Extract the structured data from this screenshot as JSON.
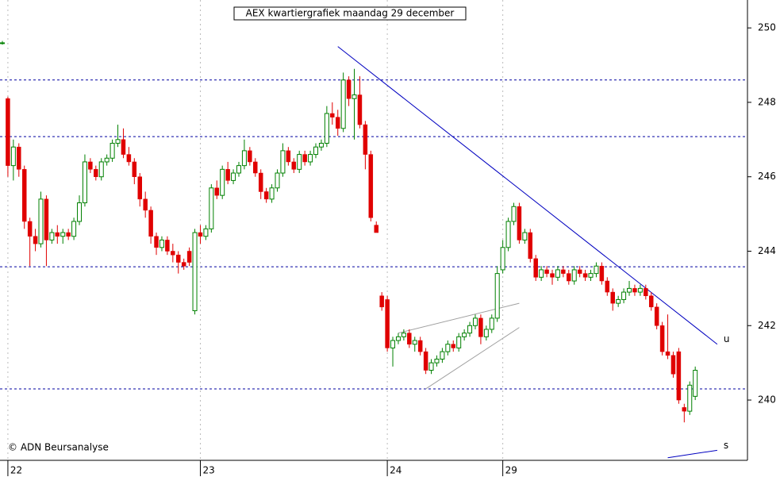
{
  "chart_data": {
    "type": "candlestick",
    "title": "AEX kwartiergrafiek maandag 29 december",
    "footer": "© ADN Beursanalyse",
    "ylim": [
      238.38,
      250.75
    ],
    "yticks": [
      240,
      242,
      244,
      246,
      248,
      250
    ],
    "up_color": "#008000",
    "down_color": "#e00000",
    "level_color": "#0000a0",
    "levels": [
      248.6,
      247.08,
      243.58,
      240.3
    ],
    "trendlines": [
      {
        "label": "u",
        "x": [
          61,
          130
        ],
        "y": [
          249.5,
          241.5
        ],
        "color": "#0000c0"
      },
      {
        "label": "s",
        "x": [
          121,
          130
        ],
        "y": [
          238.45,
          238.65
        ],
        "color": "#0000c0"
      },
      {
        "x": [
          72,
          94
        ],
        "y": [
          241.8,
          242.6
        ],
        "color": "#a0a0a0"
      },
      {
        "x": [
          77,
          94
        ],
        "y": [
          240.3,
          241.95
        ],
        "color": "#a0a0a0"
      }
    ],
    "categories": [
      null,
      "22",
      null,
      null,
      null,
      null,
      null,
      null,
      null,
      null,
      null,
      null,
      null,
      null,
      null,
      null,
      null,
      null,
      null,
      null,
      null,
      null,
      null,
      null,
      null,
      null,
      null,
      null,
      null,
      null,
      null,
      null,
      null,
      null,
      null,
      null,
      "23",
      null,
      null,
      null,
      null,
      null,
      null,
      null,
      null,
      null,
      null,
      null,
      null,
      null,
      null,
      null,
      null,
      null,
      null,
      null,
      null,
      null,
      null,
      null,
      null,
      null,
      null,
      null,
      null,
      null,
      null,
      null,
      null,
      null,
      "24",
      null,
      null,
      null,
      null,
      null,
      null,
      null,
      null,
      null,
      null,
      null,
      null,
      null,
      null,
      null,
      null,
      null,
      null,
      null,
      null,
      "29",
      null,
      null,
      null,
      null,
      null,
      null,
      null,
      null,
      null,
      null,
      null,
      null,
      null,
      null,
      null,
      null,
      null,
      null,
      null,
      null,
      null,
      null,
      null,
      null,
      null,
      null,
      null,
      null,
      null,
      null,
      null,
      null,
      null,
      null,
      null
    ],
    "open": [
      249.6,
      248.1,
      246.3,
      246.8,
      246.2,
      244.8,
      244.4,
      244.2,
      245.4,
      244.3,
      244.5,
      244.4,
      244.5,
      244.4,
      244.8,
      245.3,
      246.4,
      246.2,
      246.0,
      246.4,
      246.5,
      246.9,
      247.0,
      246.6,
      246.4,
      246.0,
      245.4,
      245.1,
      244.4,
      244.1,
      244.3,
      244.0,
      243.9,
      243.7,
      244.0,
      242.4,
      244.5,
      244.4,
      244.6,
      245.7,
      245.5,
      246.2,
      245.9,
      246.1,
      246.3,
      246.7,
      246.4,
      246.1,
      245.6,
      245.4,
      245.7,
      246.1,
      246.7,
      246.4,
      246.2,
      246.6,
      246.4,
      246.6,
      246.8,
      246.9,
      247.7,
      247.6,
      247.3,
      248.6,
      248.1,
      248.2,
      247.4,
      246.6,
      244.7,
      242.8,
      242.7,
      241.4,
      241.6,
      241.7,
      241.8,
      241.5,
      241.6,
      241.3,
      240.8,
      241.0,
      241.1,
      241.3,
      241.5,
      241.4,
      241.7,
      241.8,
      242.0,
      242.2,
      241.7,
      241.9,
      242.2,
      243.5,
      244.1,
      244.8,
      245.2,
      244.3,
      244.5,
      243.8,
      243.3,
      243.5,
      243.4,
      243.3,
      243.5,
      243.4,
      243.2,
      243.5,
      243.4,
      243.3,
      243.4,
      243.6,
      243.2,
      242.9,
      242.6,
      242.7,
      242.9,
      243.0,
      242.9,
      243.0,
      242.8,
      242.5,
      242.0,
      241.3,
      241.2,
      241.3,
      239.8,
      239.7,
      240.1
    ],
    "high": [
      249.65,
      248.15,
      247.0,
      246.9,
      246.3,
      244.9,
      244.6,
      245.6,
      245.5,
      244.6,
      244.7,
      244.6,
      244.6,
      244.9,
      245.5,
      246.6,
      246.5,
      246.3,
      246.5,
      246.6,
      247.0,
      247.4,
      247.3,
      246.8,
      246.5,
      246.1,
      245.6,
      245.2,
      244.5,
      244.4,
      244.4,
      244.2,
      244.0,
      243.8,
      244.1,
      244.6,
      244.7,
      244.7,
      245.8,
      245.9,
      246.3,
      246.4,
      246.2,
      246.4,
      247.0,
      246.8,
      246.5,
      246.2,
      245.7,
      245.8,
      246.2,
      246.9,
      246.8,
      246.5,
      246.7,
      246.7,
      246.7,
      246.9,
      247.0,
      247.9,
      248.0,
      247.8,
      248.8,
      248.7,
      248.9,
      248.7,
      247.5,
      246.7,
      244.8,
      242.9,
      242.8,
      241.7,
      241.8,
      241.9,
      241.9,
      241.7,
      241.7,
      241.4,
      241.1,
      241.2,
      241.4,
      241.6,
      241.6,
      241.8,
      241.9,
      242.1,
      242.3,
      242.3,
      242.0,
      242.3,
      243.6,
      244.3,
      244.9,
      245.3,
      245.3,
      244.6,
      244.6,
      243.9,
      243.6,
      243.6,
      243.5,
      243.6,
      243.6,
      243.5,
      243.6,
      243.6,
      243.5,
      243.5,
      243.7,
      243.7,
      243.3,
      243.0,
      242.8,
      243.0,
      243.2,
      243.1,
      243.1,
      243.1,
      242.9,
      242.6,
      242.1,
      242.3,
      241.3,
      241.4,
      239.9,
      240.5,
      240.9
    ],
    "low": [
      249.55,
      246.0,
      245.9,
      246.0,
      244.6,
      243.6,
      244.0,
      244.1,
      243.6,
      244.2,
      244.2,
      244.2,
      244.3,
      244.3,
      244.7,
      245.2,
      246.1,
      245.9,
      245.9,
      246.3,
      246.4,
      246.8,
      246.5,
      246.3,
      245.8,
      245.2,
      244.9,
      244.2,
      243.9,
      244.0,
      243.9,
      243.7,
      243.4,
      243.5,
      243.6,
      242.3,
      244.2,
      244.3,
      244.5,
      245.4,
      245.4,
      245.8,
      245.8,
      246.0,
      246.2,
      246.3,
      246.0,
      245.4,
      245.3,
      245.3,
      245.6,
      246.0,
      246.3,
      246.1,
      246.1,
      246.3,
      246.3,
      246.5,
      246.7,
      246.8,
      247.4,
      247.1,
      247.2,
      247.9,
      247.0,
      247.3,
      246.2,
      244.8,
      244.5,
      242.4,
      241.3,
      240.9,
      241.5,
      241.6,
      241.4,
      241.3,
      241.2,
      240.7,
      240.7,
      240.9,
      241.0,
      241.2,
      241.3,
      241.3,
      241.6,
      241.7,
      241.9,
      241.5,
      241.6,
      241.8,
      242.1,
      243.4,
      244.0,
      244.7,
      244.2,
      244.2,
      243.7,
      243.2,
      243.2,
      243.3,
      243.1,
      243.2,
      243.3,
      243.1,
      243.1,
      243.3,
      243.2,
      243.2,
      243.3,
      243.1,
      242.8,
      242.4,
      242.5,
      242.6,
      242.8,
      242.8,
      242.8,
      242.7,
      242.4,
      241.9,
      241.2,
      241.1,
      240.6,
      239.9,
      239.4,
      239.6,
      240.0
    ],
    "close": [
      249.6,
      246.3,
      246.8,
      246.2,
      244.8,
      244.4,
      244.2,
      245.4,
      244.3,
      244.5,
      244.4,
      244.5,
      244.4,
      244.8,
      245.3,
      246.4,
      246.2,
      246.0,
      246.4,
      246.5,
      246.9,
      247.0,
      246.6,
      246.4,
      246.0,
      245.4,
      245.1,
      244.4,
      244.1,
      244.3,
      244.0,
      243.9,
      243.7,
      243.6,
      243.7,
      244.5,
      244.4,
      244.6,
      245.7,
      245.5,
      246.2,
      245.9,
      246.1,
      246.3,
      246.7,
      246.4,
      246.1,
      245.6,
      245.4,
      245.7,
      246.1,
      246.7,
      246.4,
      246.2,
      246.6,
      246.4,
      246.6,
      246.8,
      246.9,
      247.7,
      247.6,
      247.3,
      248.6,
      248.1,
      248.2,
      247.4,
      246.6,
      244.9,
      244.5,
      242.5,
      241.4,
      241.6,
      241.7,
      241.8,
      241.5,
      241.6,
      241.3,
      240.8,
      241.0,
      241.1,
      241.3,
      241.5,
      241.4,
      241.7,
      241.8,
      242.0,
      242.2,
      241.7,
      241.9,
      242.2,
      243.4,
      244.1,
      244.8,
      245.2,
      244.3,
      244.5,
      243.8,
      243.3,
      243.5,
      243.4,
      243.3,
      243.5,
      243.4,
      243.2,
      243.5,
      243.4,
      243.3,
      243.4,
      243.6,
      243.2,
      242.9,
      242.6,
      242.7,
      242.9,
      243.0,
      242.9,
      243.0,
      242.8,
      242.5,
      242.0,
      241.3,
      241.2,
      240.7,
      240.0,
      239.7,
      240.4,
      240.8
    ]
  }
}
